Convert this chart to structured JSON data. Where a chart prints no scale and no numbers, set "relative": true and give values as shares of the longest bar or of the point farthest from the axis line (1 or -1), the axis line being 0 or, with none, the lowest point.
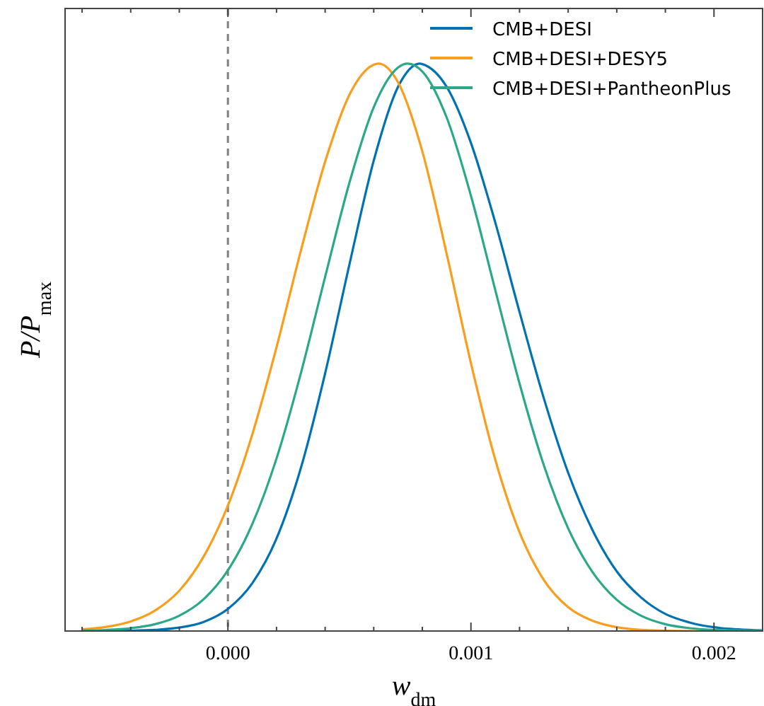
{
  "chart_data": {
    "type": "line",
    "relative": true,
    "xlabel": "w$_{dm}$",
    "ylabel": "P/P$_{max}$",
    "series": [
      {
        "name": "CMB+DESI",
        "color": "#0072b2",
        "x": [
          -0.0006,
          -0.0005,
          -0.0004,
          -0.0003,
          -0.0002,
          -0.0001,
          0,
          0.0001,
          0.0002,
          0.0003,
          0.0004,
          0.0005,
          0.0006,
          0.0007,
          0.00079,
          0.0008,
          0.0009,
          0.001,
          0.0011,
          0.0012,
          0.0013,
          0.0014,
          0.0015,
          0.0016,
          0.0017,
          0.0018,
          0.0019,
          0.002,
          0.0021,
          0.0022
        ],
        "values": [
          0,
          0.0002,
          0.0006,
          0.002,
          0.006,
          0.016,
          0.039,
          0.084,
          0.163,
          0.287,
          0.454,
          0.646,
          0.829,
          0.959,
          1,
          0.999,
          0.959,
          0.86,
          0.72,
          0.562,
          0.41,
          0.279,
          0.178,
          0.105,
          0.059,
          0.03,
          0.015,
          0.0066,
          0.003,
          0.001
        ]
      },
      {
        "name": "CMB+DESI+DESY5",
        "color": "#f99d1c",
        "x": [
          -0.0006,
          -0.0005,
          -0.0004,
          -0.0003,
          -0.0002,
          -0.0001,
          0,
          0.0001,
          0.0002,
          0.0003,
          0.0004,
          0.0005,
          0.0006,
          0.00062,
          0.0007,
          0.0008,
          0.0009,
          0.001,
          0.0011,
          0.0012,
          0.0013,
          0.0014,
          0.0015,
          0.0016,
          0.0017,
          0.0018,
          0.0019,
          0.002
        ],
        "values": [
          0.0029,
          0.0073,
          0.0169,
          0.036,
          0.071,
          0.131,
          0.221,
          0.346,
          0.5,
          0.67,
          0.827,
          0.945,
          0.998,
          1,
          0.967,
          0.845,
          0.665,
          0.472,
          0.302,
          0.174,
          0.09,
          0.042,
          0.018,
          0.0067,
          0.002,
          0.0005,
          0,
          0
        ]
      },
      {
        "name": "CMB+DESI+PantheonPlus",
        "color": "#2aa889",
        "x": [
          -0.0006,
          -0.0005,
          -0.0004,
          -0.0003,
          -0.0002,
          -0.0001,
          0,
          0.0001,
          0.0002,
          0.0003,
          0.0004,
          0.0005,
          0.0006,
          0.0007,
          0.00074,
          0.0008,
          0.0009,
          0.001,
          0.0011,
          0.0012,
          0.0013,
          0.0014,
          0.0015,
          0.0016,
          0.0017,
          0.0018,
          0.0019,
          0.002,
          0.0021,
          0.0022
        ],
        "values": [
          0.0007,
          0.0019,
          0.005,
          0.012,
          0.027,
          0.056,
          0.107,
          0.188,
          0.304,
          0.454,
          0.624,
          0.79,
          0.923,
          0.993,
          1,
          0.986,
          0.905,
          0.767,
          0.601,
          0.436,
          0.292,
          0.181,
          0.104,
          0.055,
          0.027,
          0.012,
          0.005,
          0.002,
          0.0007,
          0.0002
        ]
      }
    ],
    "xlim": [
      -0.00067,
      0.0022
    ],
    "xticks": [
      {
        "value": -0.0006,
        "label": null
      },
      {
        "value": -0.0004,
        "label": null
      },
      {
        "value": -0.0002,
        "label": null
      },
      {
        "value": 0,
        "label": "0.000"
      },
      {
        "value": 0.0002,
        "label": null
      },
      {
        "value": 0.0004,
        "label": null
      },
      {
        "value": 0.0006,
        "label": null
      },
      {
        "value": 0.0008,
        "label": null
      },
      {
        "value": 0.001,
        "label": "0.001"
      },
      {
        "value": 0.0012,
        "label": null
      },
      {
        "value": 0.0014,
        "label": null
      },
      {
        "value": 0.0016,
        "label": null
      },
      {
        "value": 0.0018,
        "label": null
      },
      {
        "value": 0.002,
        "label": "0.002"
      }
    ],
    "ref_lines": [
      {
        "axis": "x",
        "value": 0,
        "color": "#808080",
        "line_style": "dashed"
      }
    ],
    "legend": "top right",
    "tick_labels": "x",
    "line_style": "solid",
    "grid": false
  }
}
